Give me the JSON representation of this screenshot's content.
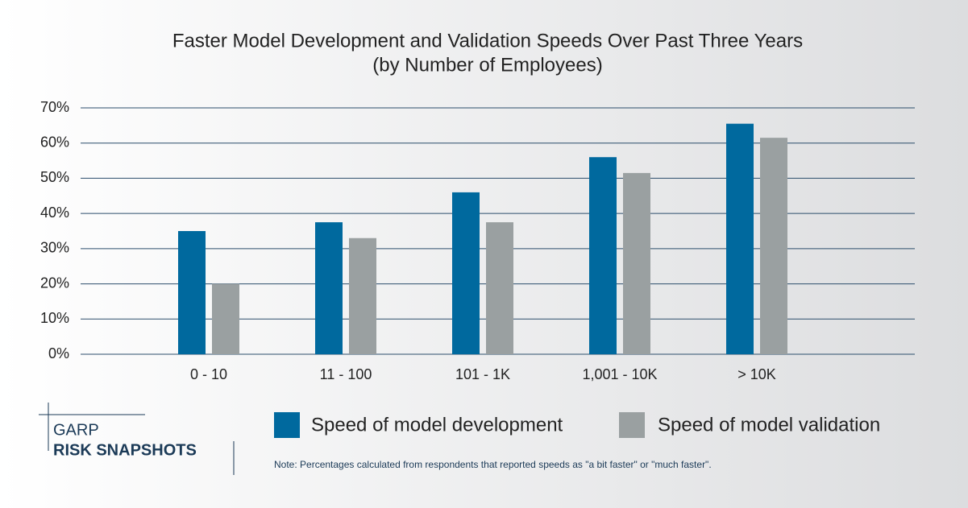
{
  "chart_data": {
    "type": "bar",
    "title": [
      "Faster Model Development and Validation Speeds Over Past Three Years",
      "(by Number of Employees)"
    ],
    "categories": [
      "0 - 10",
      "11 - 100",
      "101 - 1K",
      "1,001 - 10K",
      "> 10K"
    ],
    "series": [
      {
        "name": "Speed of model development",
        "color": "#00699e",
        "values": [
          35,
          37.5,
          46,
          56,
          65.5
        ]
      },
      {
        "name": "Speed of model validation",
        "color": "#9aa0a1",
        "values": [
          20,
          33,
          37.5,
          51.5,
          61.5
        ]
      }
    ],
    "ylim": [
      0,
      70
    ],
    "yticks": [
      {
        "value": 0,
        "label": "0%"
      },
      {
        "value": 10,
        "label": "10%"
      },
      {
        "value": 20,
        "label": "20%"
      },
      {
        "value": 30,
        "label": "30%"
      },
      {
        "value": 40,
        "label": "40%"
      },
      {
        "value": 50,
        "label": "50%"
      },
      {
        "value": 60,
        "label": "60%"
      },
      {
        "value": 70,
        "label": "70%"
      }
    ],
    "grid": true,
    "note": "Note: Percentages calculated from respondents that reported speeds as \"a bit faster\" or \"much faster\"."
  },
  "logo": {
    "line1": "GARP",
    "line2": "RISK SNAPSHOTS"
  }
}
